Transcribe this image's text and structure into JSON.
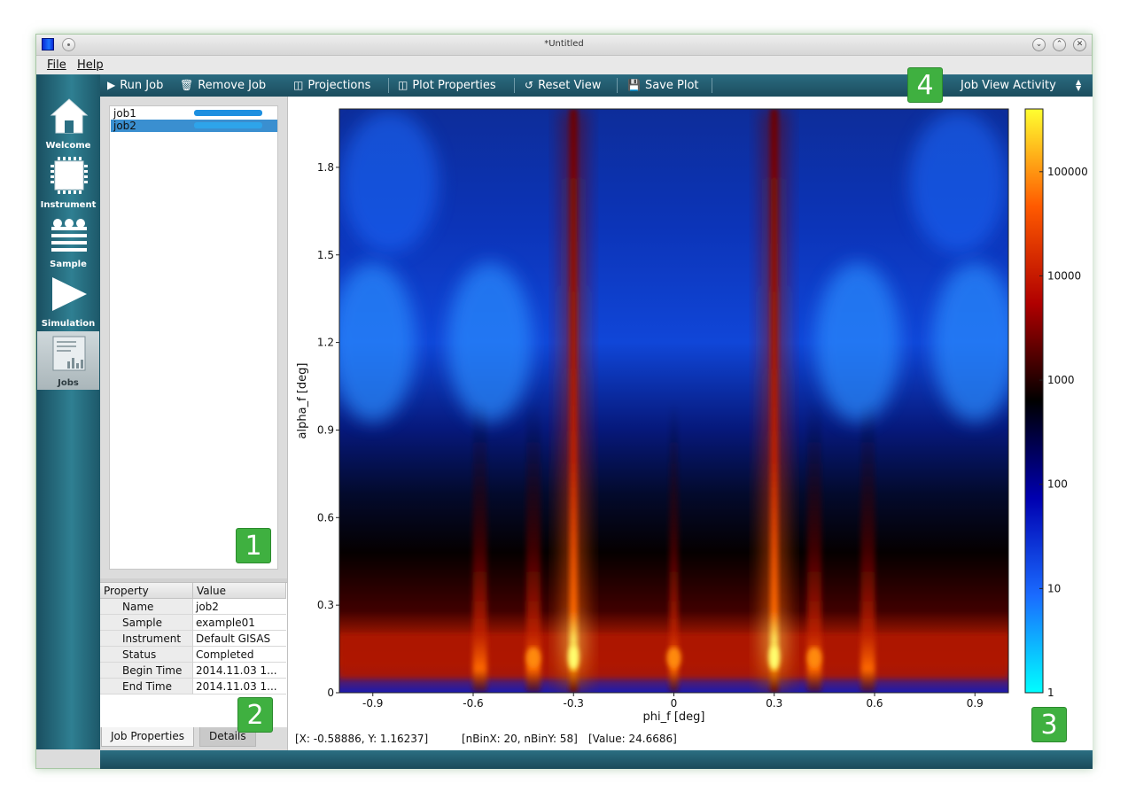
{
  "window": {
    "title": "*Untitled"
  },
  "menu": [
    "File",
    "Help"
  ],
  "sidebar_tabs": [
    {
      "label": "Welcome",
      "icon": "home-icon",
      "active": false
    },
    {
      "label": "Instrument",
      "icon": "chip-icon",
      "active": false
    },
    {
      "label": "Sample",
      "icon": "layers-icon",
      "active": false
    },
    {
      "label": "Simulation",
      "icon": "play-icon",
      "active": false
    },
    {
      "label": "Jobs",
      "icon": "jobs-chart-icon",
      "active": true
    }
  ],
  "toolbar": {
    "run_job": "Run Job",
    "remove_job": "Remove Job",
    "projections": "Projections",
    "plot_properties": "Plot Properties",
    "reset_view": "Reset View",
    "save_plot": "Save Plot",
    "activity_select": "Job View Activity"
  },
  "jobs": [
    {
      "name": "job1",
      "progress": 1.0,
      "selected": false
    },
    {
      "name": "job2",
      "progress": 1.0,
      "selected": true
    }
  ],
  "properties": {
    "headers": [
      "Property",
      "Value"
    ],
    "rows": [
      {
        "key": "Name",
        "value": "job2"
      },
      {
        "key": "Sample",
        "value": "example01"
      },
      {
        "key": "Instrument",
        "value": "Default GISAS"
      },
      {
        "key": "Status",
        "value": "Completed"
      },
      {
        "key": "Begin Time",
        "value": "2014.11.03 1..."
      },
      {
        "key": "End Time",
        "value": "2014.11.03 1..."
      }
    ]
  },
  "bottom_tabs": [
    "Job Properties",
    "Details"
  ],
  "status": {
    "coords": "[X: -0.58886, Y: 1.16237]",
    "bins": "[nBinX: 20, nBinY: 58]",
    "value": "[Value: 24.6686]"
  },
  "callouts": [
    "1",
    "2",
    "3",
    "4"
  ],
  "chart_data": {
    "type": "heatmap",
    "xlabel": "phi_f [deg]",
    "ylabel": "alpha_f [deg]",
    "xlim": [
      -1.0,
      1.0
    ],
    "ylim": [
      0,
      2.0
    ],
    "x_ticks": [
      "-0.9",
      "-0.6",
      "-0.3",
      "0",
      "0.3",
      "0.6",
      "0.9"
    ],
    "x_tick_values": [
      -0.9,
      -0.6,
      -0.3,
      0,
      0.3,
      0.6,
      0.9
    ],
    "y_ticks": [
      "0",
      "0.3",
      "0.6",
      "0.9",
      "1.2",
      "1.5",
      "1.8"
    ],
    "y_tick_values": [
      0,
      0.3,
      0.6,
      0.9,
      1.2,
      1.5,
      1.8
    ],
    "colorbar": {
      "scale": "log",
      "range": [
        1,
        400000
      ],
      "ticks": [
        "1",
        "10",
        "100",
        "1000",
        "10000",
        "100000"
      ],
      "tick_values": [
        1,
        10,
        100,
        1000,
        10000,
        100000
      ],
      "colors": [
        "#00ffff",
        "#1a6bff",
        "#0000b0",
        "#000000",
        "#b00000",
        "#ff5a00",
        "#ffff30"
      ]
    },
    "main_streaks_phi": [
      -0.3,
      0.3
    ],
    "secondary_streaks_phi": [
      -0.58,
      -0.42,
      0,
      0.42,
      0.58
    ],
    "horizontal_band_alpha": [
      0.05,
      0.2
    ]
  }
}
